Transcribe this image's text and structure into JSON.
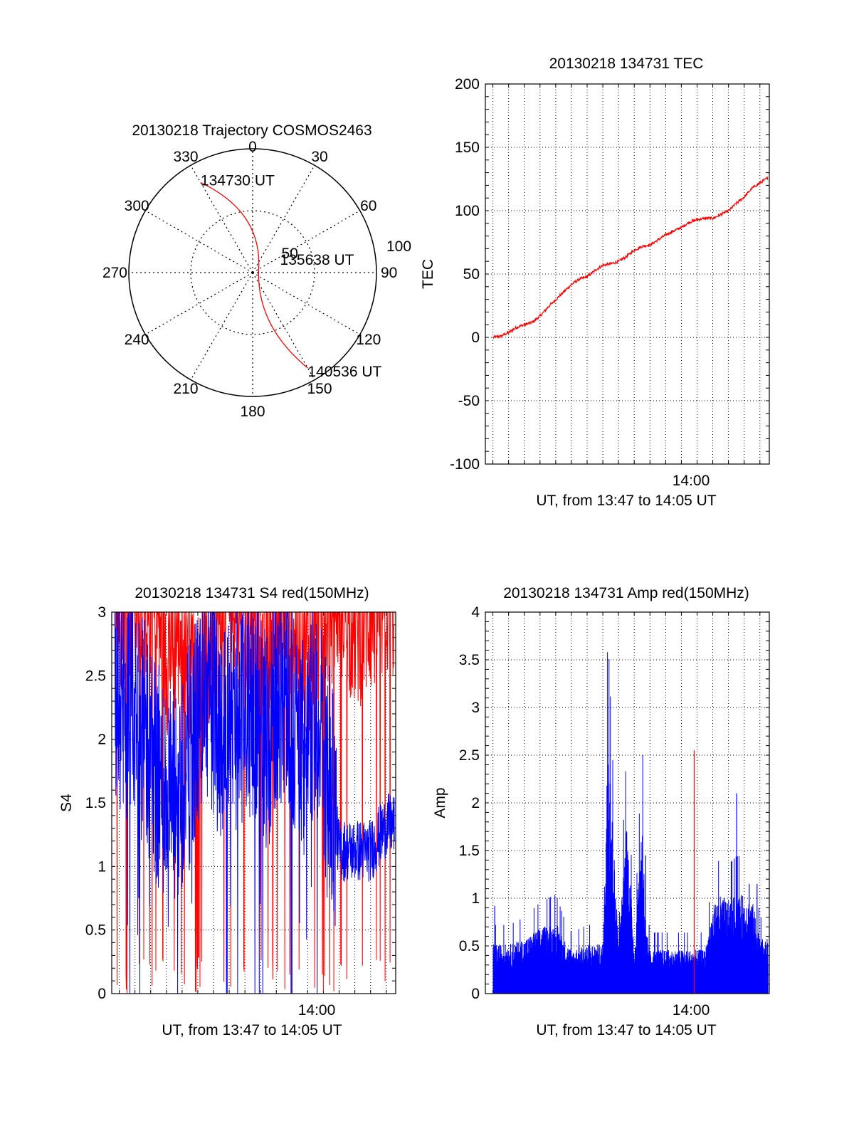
{
  "colors": {
    "red": "#ff0000",
    "blue": "#0000ff",
    "axis": "#000000",
    "grid": "#000000"
  },
  "chart_data": [
    {
      "type": "polar",
      "title": "20130218 Trajectory COSMOS2463",
      "angle_labels": [
        "0",
        "30",
        "60",
        "90",
        "120",
        "150",
        "180",
        "210",
        "240",
        "270",
        "300",
        "330"
      ],
      "ring_labels": [
        "50",
        "100"
      ],
      "r_max": 100,
      "points": [
        {
          "label": "134730 UT",
          "azimuth": 330,
          "r": 84
        },
        {
          "label": "135638 UT",
          "azimuth": 55,
          "r": 6
        },
        {
          "label": "140536 UT",
          "azimuth": 150,
          "r": 89
        }
      ],
      "series_color": "red"
    },
    {
      "type": "line",
      "title": "20130218 134731 TEC",
      "xlabel": "UT, from 13:47 to 14:05 UT",
      "ylabel": "TEC",
      "xlim": [
        "13:47:31",
        "14:05:36"
      ],
      "ylim": [
        -100,
        200
      ],
      "yticks": [
        "-100",
        "-50",
        "0",
        "50",
        "100",
        "150",
        "200"
      ],
      "xtick_label": "14:00",
      "grid": true,
      "series_color": "red",
      "x_min": [
        0.5,
        1.0,
        1.5,
        2.0,
        2.5,
        3.0,
        3.5,
        4.0,
        4.5,
        5.0,
        5.5,
        6.0,
        6.5,
        7.0,
        7.5,
        8.0,
        8.5,
        9.0,
        9.5,
        10.0,
        10.5,
        11.0,
        11.5,
        12.0,
        12.5,
        13.0,
        13.5,
        14.0,
        14.5,
        15.0,
        15.5,
        16.0,
        16.5,
        17.0,
        17.5,
        18.0
      ],
      "y": [
        0,
        1,
        4,
        8,
        10,
        12,
        17,
        24,
        30,
        36,
        42,
        46,
        48,
        53,
        57,
        58,
        60,
        64,
        69,
        72,
        73,
        77,
        81,
        84,
        87,
        91,
        93,
        94,
        94,
        97,
        100,
        106,
        111,
        118,
        122,
        126
      ]
    },
    {
      "type": "line",
      "title": "20130218 134731 S4 red(150MHz)",
      "xlabel": "UT, from 13:47 to 14:05 UT",
      "ylabel": "S4",
      "xlim": [
        "13:47:31",
        "14:05:36"
      ],
      "ylim": [
        0,
        3
      ],
      "yticks": [
        "0",
        "0.5",
        "1",
        "1.5",
        "2",
        "2.5",
        "3"
      ],
      "xtick_label": "14:00",
      "grid": true,
      "series": [
        {
          "color": "red",
          "x_min": [
            0.3,
            1.5,
            2.5,
            3.5,
            4.5,
            5.5,
            6.5,
            7.5,
            8.5,
            9.5,
            10.5,
            11.5,
            12.5,
            13.5,
            14.5,
            15.5,
            16.5,
            17.5
          ],
          "y": [
            2.6,
            2.8,
            2.7,
            2.3,
            2.5,
            2.0,
            2.4,
            2.8,
            2.6,
            2.2,
            2.7,
            2.5,
            2.3,
            2.6,
            2.8,
            2.5,
            2.6,
            2.7
          ]
        },
        {
          "color": "blue",
          "x_min": [
            0.3,
            1.0,
            2.0,
            3.0,
            4.0,
            5.0,
            6.0,
            7.0,
            8.0,
            9.0,
            10.0,
            11.0,
            12.0,
            13.0,
            14.0,
            14.5,
            15.5,
            16.5,
            17.5
          ],
          "y": [
            2.3,
            2.1,
            2.0,
            1.6,
            1.4,
            1.8,
            2.3,
            2.0,
            2.1,
            2.2,
            1.9,
            2.4,
            1.8,
            2.2,
            1.5,
            1.1,
            1.1,
            1.1,
            1.3
          ]
        }
      ]
    },
    {
      "type": "line",
      "title": "20130218 134731 Amp red(150MHz)",
      "xlabel": "UT, from 13:47 to 14:05 UT",
      "ylabel": "Amp",
      "xlim": [
        "13:47:31",
        "14:05:36"
      ],
      "ylim": [
        0,
        4
      ],
      "yticks": [
        "0",
        "0.5",
        "1",
        "1.5",
        "2",
        "2.5",
        "3",
        "3.5",
        "4"
      ],
      "xtick_label": "14:00",
      "grid": true,
      "series": [
        {
          "color": "blue",
          "x_min": [
            0.5,
            1.5,
            2.5,
            3.5,
            4.5,
            5.0,
            5.5,
            6.5,
            7.5,
            7.8,
            8.5,
            9.0,
            9.5,
            10.0,
            10.2,
            10.5,
            11.0,
            12.0,
            13.0,
            14.0,
            14.5,
            15.0,
            15.5,
            16.0,
            16.5,
            17.0,
            17.5
          ],
          "y": [
            0.45,
            0.45,
            0.5,
            0.6,
            0.65,
            0.5,
            0.4,
            0.45,
            0.45,
            2.4,
            0.45,
            1.6,
            0.4,
            1.7,
            0.6,
            0.4,
            0.4,
            0.4,
            0.4,
            0.4,
            0.8,
            0.9,
            0.85,
            0.9,
            0.9,
            0.85,
            0.5
          ]
        },
        {
          "color": "red",
          "x_min": [
            13.3
          ],
          "y": [
            2.55
          ]
        }
      ]
    }
  ]
}
